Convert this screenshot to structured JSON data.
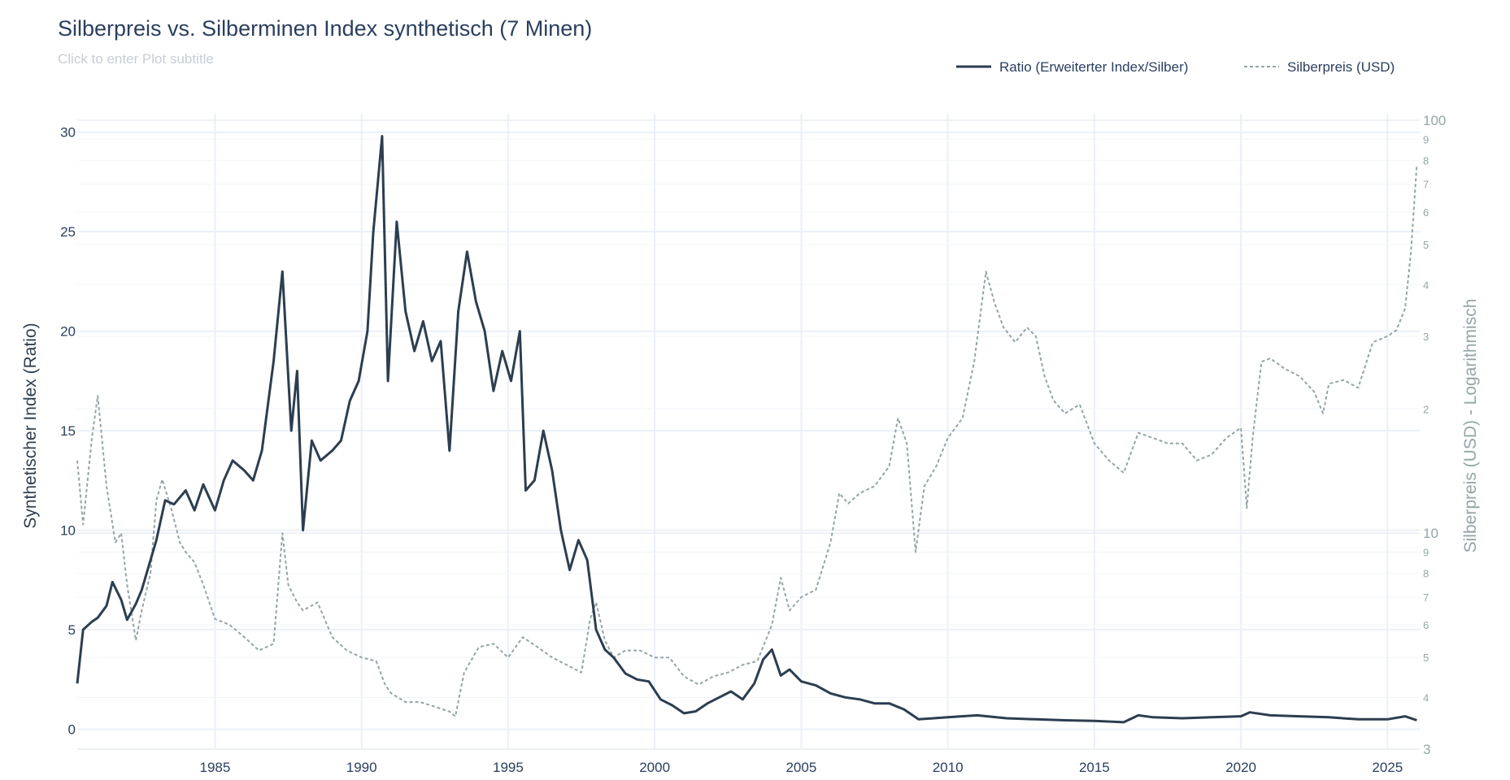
{
  "chart_data": {
    "type": "line",
    "title": "Silberpreis vs. Silberminen Index synthetisch (7 Minen)",
    "subtitle": "Click to enter Plot subtitle",
    "ylabel": "Synthetischer Index (Ratio)",
    "y2label": "Silberpreis (USD) - Logarithmisch",
    "xlim": [
      1980.3,
      2026.1
    ],
    "ylim": [
      -1.0,
      30.6
    ],
    "y2lim": [
      3.0,
      100.0
    ],
    "y2scale": "log",
    "grid": true,
    "legend_position": "top-right",
    "x_ticks": [
      1985,
      1990,
      1995,
      2000,
      2005,
      2010,
      2015,
      2020,
      2025
    ],
    "y_ticks": [
      0,
      5,
      10,
      15,
      20,
      25,
      30
    ],
    "y2_ticks_major": [
      3,
      10,
      100
    ],
    "y2_ticks_minor": [
      4,
      5,
      6,
      7,
      8,
      9,
      20,
      30,
      40,
      50,
      60,
      70,
      80,
      90
    ],
    "series": [
      {
        "name": "Ratio (Erweiterter Index/Silber)",
        "axis": "left",
        "color": "#2c3e50",
        "dash": "solid",
        "x": [
          1980.3,
          1980.5,
          1980.8,
          1981.0,
          1981.3,
          1981.5,
          1981.8,
          1982.0,
          1982.3,
          1982.5,
          1982.8,
          1983.0,
          1983.3,
          1983.6,
          1984.0,
          1984.3,
          1984.6,
          1985.0,
          1985.3,
          1985.6,
          1986.0,
          1986.3,
          1986.6,
          1987.0,
          1987.3,
          1987.6,
          1987.8,
          1988.0,
          1988.3,
          1988.6,
          1989.0,
          1989.3,
          1989.6,
          1989.9,
          1990.2,
          1990.4,
          1990.7,
          1990.9,
          1991.2,
          1991.5,
          1991.8,
          1992.1,
          1992.4,
          1992.7,
          1993.0,
          1993.3,
          1993.6,
          1993.9,
          1994.2,
          1994.5,
          1994.8,
          1995.1,
          1995.4,
          1995.6,
          1995.9,
          1996.2,
          1996.5,
          1996.8,
          1997.1,
          1997.4,
          1997.7,
          1998.0,
          1998.3,
          1998.6,
          1999.0,
          1999.4,
          1999.8,
          2000.2,
          2000.6,
          2001.0,
          2001.4,
          2001.8,
          2002.2,
          2002.6,
          2003.0,
          2003.4,
          2003.7,
          2004.0,
          2004.3,
          2004.6,
          2005.0,
          2005.5,
          2006.0,
          2006.5,
          2007.0,
          2007.5,
          2008.0,
          2008.5,
          2009.0,
          2010.0,
          2011.0,
          2012.0,
          2013.0,
          2014.0,
          2015.0,
          2016.0,
          2016.5,
          2017.0,
          2018.0,
          2019.0,
          2020.0,
          2020.3,
          2021.0,
          2022.0,
          2023.0,
          2024.0,
          2025.0,
          2025.6,
          2026.0
        ],
        "y": [
          2.3,
          5.0,
          5.4,
          5.6,
          6.2,
          7.4,
          6.5,
          5.5,
          6.3,
          7.0,
          8.5,
          9.5,
          11.5,
          11.3,
          12.0,
          11.0,
          12.3,
          11.0,
          12.5,
          13.5,
          13.0,
          12.5,
          14.0,
          18.5,
          23.0,
          15.0,
          18.0,
          10.0,
          14.5,
          13.5,
          14.0,
          14.5,
          16.5,
          17.5,
          20.0,
          25.0,
          29.8,
          17.5,
          25.5,
          21.0,
          19.0,
          20.5,
          18.5,
          19.5,
          14.0,
          21.0,
          24.0,
          21.5,
          20.0,
          17.0,
          19.0,
          17.5,
          20.0,
          12.0,
          12.5,
          15.0,
          13.0,
          10.0,
          8.0,
          9.5,
          8.5,
          5.0,
          4.0,
          3.6,
          2.8,
          2.5,
          2.4,
          1.5,
          1.2,
          0.8,
          0.9,
          1.3,
          1.6,
          1.9,
          1.5,
          2.3,
          3.5,
          4.0,
          2.7,
          3.0,
          2.4,
          2.2,
          1.8,
          1.6,
          1.5,
          1.3,
          1.3,
          1.0,
          0.5,
          0.6,
          0.7,
          0.55,
          0.5,
          0.45,
          0.42,
          0.35,
          0.7,
          0.6,
          0.55,
          0.6,
          0.65,
          0.85,
          0.7,
          0.65,
          0.6,
          0.5,
          0.5,
          0.65,
          0.45
        ]
      },
      {
        "name": "Silberpreis (USD)",
        "axis": "right",
        "color": "#95a5a6",
        "dash": "dashed",
        "x": [
          1980.3,
          1980.5,
          1980.8,
          1981.0,
          1981.3,
          1981.6,
          1981.8,
          1982.0,
          1982.3,
          1982.5,
          1982.8,
          1983.0,
          1983.2,
          1983.5,
          1983.8,
          1984.0,
          1984.3,
          1984.6,
          1985.0,
          1985.5,
          1986.0,
          1986.5,
          1987.0,
          1987.3,
          1987.5,
          1987.8,
          1988.0,
          1988.5,
          1989.0,
          1989.5,
          1990.0,
          1990.5,
          1990.8,
          1991.0,
          1991.5,
          1992.0,
          1992.5,
          1993.0,
          1993.2,
          1993.5,
          1994.0,
          1994.5,
          1995.0,
          1995.5,
          1996.0,
          1996.5,
          1997.0,
          1997.5,
          1997.8,
          1998.0,
          1998.3,
          1998.6,
          1999.0,
          1999.5,
          2000.0,
          2000.5,
          2001.0,
          2001.5,
          2002.0,
          2002.5,
          2003.0,
          2003.5,
          2004.0,
          2004.3,
          2004.6,
          2005.0,
          2005.5,
          2006.0,
          2006.3,
          2006.6,
          2007.0,
          2007.5,
          2008.0,
          2008.3,
          2008.6,
          2008.9,
          2009.2,
          2009.6,
          2010.0,
          2010.5,
          2010.9,
          2011.3,
          2011.6,
          2011.9,
          2012.3,
          2012.7,
          2013.0,
          2013.3,
          2013.6,
          2014.0,
          2014.5,
          2015.0,
          2015.5,
          2016.0,
          2016.5,
          2017.0,
          2017.5,
          2018.0,
          2018.5,
          2019.0,
          2019.5,
          2020.0,
          2020.2,
          2020.4,
          2020.7,
          2021.0,
          2021.5,
          2022.0,
          2022.5,
          2022.8,
          2023.0,
          2023.5,
          2024.0,
          2024.5,
          2025.0,
          2025.3,
          2025.6,
          2025.8,
          2026.0
        ],
        "y": [
          15.0,
          10.5,
          17.0,
          21.5,
          13.0,
          9.5,
          10.0,
          7.5,
          5.5,
          6.5,
          8.0,
          12.0,
          13.5,
          11.5,
          9.5,
          9.0,
          8.5,
          7.5,
          6.2,
          6.0,
          5.6,
          5.2,
          5.4,
          10.0,
          7.5,
          6.8,
          6.5,
          6.8,
          5.6,
          5.2,
          5.0,
          4.9,
          4.3,
          4.1,
          3.9,
          3.9,
          3.8,
          3.7,
          3.6,
          4.6,
          5.3,
          5.4,
          5.0,
          5.6,
          5.3,
          5.0,
          4.8,
          4.6,
          6.2,
          6.8,
          5.5,
          5.0,
          5.2,
          5.2,
          5.0,
          5.0,
          4.5,
          4.3,
          4.5,
          4.6,
          4.8,
          4.9,
          6.0,
          7.8,
          6.5,
          7.0,
          7.3,
          9.5,
          12.5,
          11.8,
          12.5,
          13.0,
          14.5,
          19.0,
          16.5,
          9.0,
          13.0,
          14.5,
          17.0,
          19.0,
          26.0,
          43.0,
          36.0,
          31.5,
          29.0,
          31.5,
          30.0,
          24.0,
          21.0,
          19.5,
          20.5,
          16.5,
          15.0,
          14.0,
          17.5,
          17.0,
          16.5,
          16.5,
          15.0,
          15.5,
          17.0,
          18.0,
          11.5,
          17.0,
          26.0,
          26.5,
          25.0,
          24.0,
          22.0,
          19.5,
          23.0,
          23.5,
          22.5,
          29.0,
          30.0,
          31.0,
          35.0,
          48.0,
          78.0
        ]
      }
    ]
  }
}
